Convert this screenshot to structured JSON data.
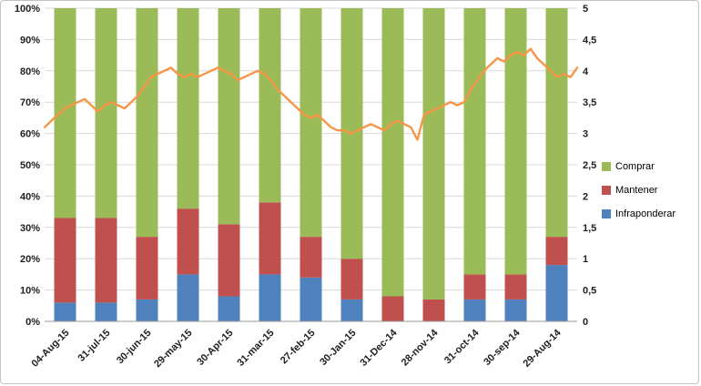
{
  "chart_data": {
    "type": "bar",
    "bar_mode": "stacked-100",
    "title": "",
    "xlabel": "",
    "ylabel": "",
    "grid": true,
    "categories": [
      "04-Aug-15",
      "31-jul-15",
      "30-jun-15",
      "29-may-15",
      "30-Apr-15",
      "31-mar-15",
      "27-feb-15",
      "30-Jan-15",
      "31-Dec-14",
      "28-nov-14",
      "31-oct-14",
      "30-sep-14",
      "29-Aug-14"
    ],
    "series": [
      {
        "name": "Infraponderar",
        "color": "#4F81BD",
        "values": [
          6,
          6,
          7,
          15,
          8,
          15,
          14,
          7,
          0,
          0,
          7,
          7,
          18
        ]
      },
      {
        "name": "Mantener",
        "color": "#C0504D",
        "values": [
          27,
          27,
          20,
          21,
          23,
          23,
          13,
          13,
          8,
          7,
          8,
          8,
          9
        ]
      },
      {
        "name": "Comprar",
        "color": "#9BBB59",
        "values": [
          67,
          67,
          73,
          64,
          69,
          62,
          73,
          80,
          92,
          93,
          85,
          85,
          73
        ]
      }
    ],
    "line_series": {
      "name": "consensus-rating-line",
      "color": "#F79646",
      "axis": "right",
      "values": [
        3.1,
        3.2,
        3.3,
        3.4,
        3.45,
        3.5,
        3.55,
        3.45,
        3.35,
        3.45,
        3.5,
        3.45,
        3.4,
        3.5,
        3.6,
        3.75,
        3.9,
        3.95,
        4.0,
        4.05,
        3.95,
        3.9,
        3.95,
        3.9,
        3.95,
        4.0,
        4.05,
        4.0,
        3.95,
        3.85,
        3.9,
        3.95,
        4.0,
        3.95,
        3.85,
        3.7,
        3.6,
        3.5,
        3.4,
        3.3,
        3.25,
        3.3,
        3.2,
        3.1,
        3.05,
        3.05,
        3.0,
        3.05,
        3.1,
        3.15,
        3.1,
        3.05,
        3.15,
        3.2,
        3.15,
        3.1,
        2.9,
        3.3,
        3.35,
        3.4,
        3.45,
        3.5,
        3.45,
        3.5,
        3.7,
        3.85,
        4.0,
        4.1,
        4.2,
        4.15,
        4.25,
        4.3,
        4.25,
        4.35,
        4.2,
        4.1,
        4.0,
        3.9,
        3.95,
        3.9,
        4.05
      ]
    },
    "left_axis": {
      "min": 0,
      "max": 100,
      "ticks": [
        "0%",
        "10%",
        "20%",
        "30%",
        "40%",
        "50%",
        "60%",
        "70%",
        "80%",
        "90%",
        "100%"
      ]
    },
    "right_axis": {
      "min": 0,
      "max": 5,
      "ticks": [
        "0",
        "0,5",
        "1",
        "1,5",
        "2",
        "2,5",
        "3",
        "3,5",
        "4",
        "4,5",
        "5"
      ]
    },
    "legend": {
      "position": "right",
      "entries": [
        {
          "label": "Comprar",
          "color": "#9BBB59"
        },
        {
          "label": "Mantener",
          "color": "#C0504D"
        },
        {
          "label": "Infraponderar",
          "color": "#4F81BD"
        }
      ]
    }
  },
  "colors": {
    "gridline": "#d9d9d9",
    "axis_line": "#9a9a9a",
    "text": "#202020"
  }
}
